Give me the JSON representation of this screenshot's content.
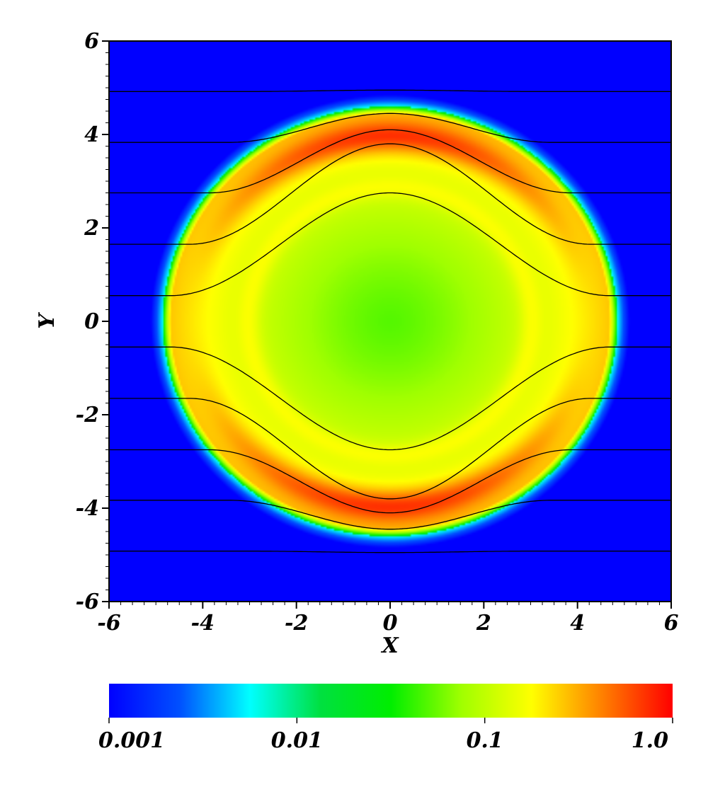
{
  "chart_data": {
    "type": "heatmap",
    "title": "",
    "xlabel": "X",
    "ylabel": "Y",
    "xlim": [
      -6,
      6
    ],
    "ylim": [
      -6,
      6
    ],
    "x_ticks": [
      -6,
      -4,
      -2,
      0,
      2,
      4,
      6
    ],
    "y_ticks": [
      -6,
      -4,
      -2,
      0,
      2,
      4,
      6
    ],
    "x_tick_labels": [
      "-6",
      "-4",
      "-2",
      "0",
      "2",
      "4",
      "6"
    ],
    "y_tick_labels": [
      "-6",
      "-4",
      "-2",
      "0",
      "2",
      "4",
      "6"
    ],
    "colorbar": {
      "scale": "log",
      "range": [
        0.001,
        1.0
      ],
      "tick_values": [
        0.001,
        0.01,
        0.1,
        1.0
      ],
      "tick_labels": [
        "0.001",
        "0.01",
        "0.1",
        "1.0"
      ],
      "colors": [
        "#0000ff",
        "#0050ff",
        "#00ffff",
        "#00e040",
        "#00ee00",
        "#a0ff00",
        "#ffff00",
        "#ff8000",
        "#ff0000"
      ]
    },
    "field": {
      "background_value": 0.001,
      "bubble_center": [
        0,
        0
      ],
      "bubble_radius_x": 4.85,
      "bubble_radius_y": 4.6,
      "center_value": 0.05,
      "shell_peak_value": 1.0
    },
    "field_lines": [
      {
        "far_y": 4.92,
        "center_y": 4.95
      },
      {
        "far_y": 3.83,
        "center_y": 4.45
      },
      {
        "far_y": 2.75,
        "center_y": 4.1
      },
      {
        "far_y": 1.65,
        "center_y": 3.8
      },
      {
        "far_y": 0.55,
        "center_y": 2.75
      },
      {
        "far_y": -0.55,
        "center_y": -2.75
      },
      {
        "far_y": -1.65,
        "center_y": -3.8
      },
      {
        "far_y": -2.75,
        "center_y": -4.1
      },
      {
        "far_y": -3.83,
        "center_y": -4.45
      },
      {
        "far_y": -4.92,
        "center_y": -4.95
      }
    ]
  }
}
